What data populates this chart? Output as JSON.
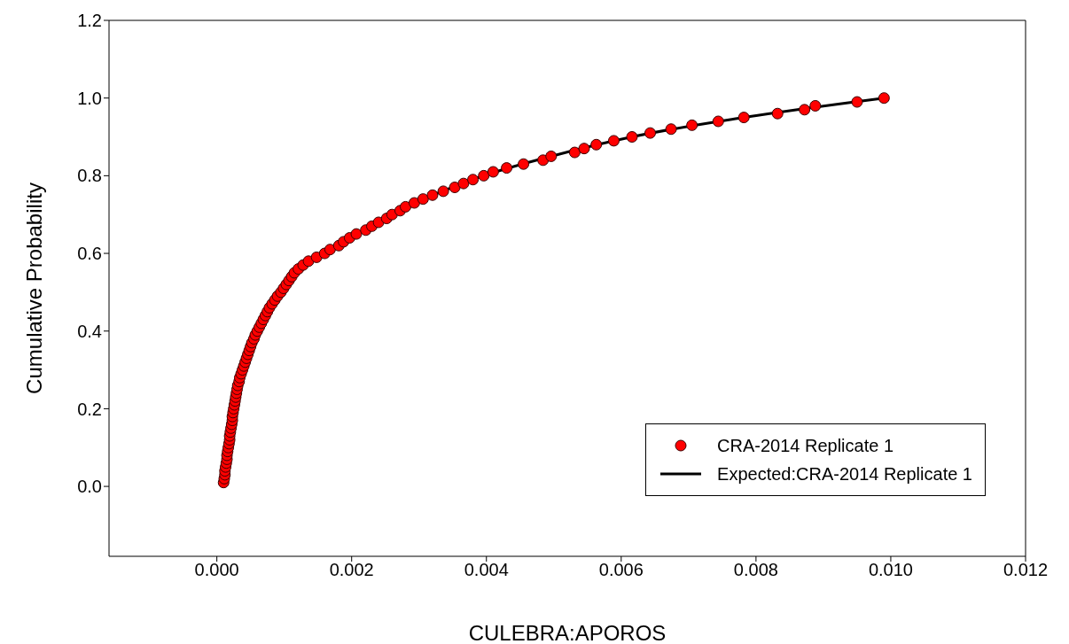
{
  "chart_data": {
    "type": "scatter",
    "xlabel": "CULEBRA:APOROS",
    "ylabel": "Cumulative Probability",
    "xlim": [
      -0.0016,
      0.012
    ],
    "ylim": [
      -0.18,
      1.2
    ],
    "xticks": [
      {
        "value": 0,
        "label": "0.000"
      },
      {
        "value": 0.002,
        "label": "0.002"
      },
      {
        "value": 0.004,
        "label": "0.004"
      },
      {
        "value": 0.006,
        "label": "0.006"
      },
      {
        "value": 0.008,
        "label": "0.008"
      },
      {
        "value": 0.01,
        "label": "0.010"
      },
      {
        "value": 0.012,
        "label": "0.012"
      }
    ],
    "yticks": [
      {
        "value": 0,
        "label": "0.0"
      },
      {
        "value": 0.2,
        "label": "0.2"
      },
      {
        "value": 0.4,
        "label": "0.4"
      },
      {
        "value": 0.6,
        "label": "0.6"
      },
      {
        "value": 0.8,
        "label": "0.8"
      },
      {
        "value": 1,
        "label": "1.0"
      },
      {
        "value": 1.2,
        "label": "1.2"
      }
    ],
    "grid": false,
    "legend": "bottom right",
    "series": [
      {
        "name": "CRA-2014 Replicate 1",
        "marker": "circle",
        "color": "#ff0000",
        "x": [
          0.0001,
          0.00011,
          0.00012,
          0.00012,
          0.00013,
          0.00014,
          0.00015,
          0.00015,
          0.00016,
          0.00017,
          0.00018,
          0.00019,
          0.00019,
          0.0002,
          0.00021,
          0.00022,
          0.00023,
          0.00023,
          0.00024,
          0.00025,
          0.00026,
          0.00027,
          0.00028,
          0.00029,
          0.0003,
          0.00031,
          0.00033,
          0.00034,
          0.00036,
          0.00038,
          0.0004,
          0.00042,
          0.00044,
          0.00046,
          0.00048,
          0.0005,
          0.00052,
          0.00055,
          0.00057,
          0.0006,
          0.00063,
          0.00066,
          0.00069,
          0.00072,
          0.00075,
          0.00078,
          0.00082,
          0.00086,
          0.0009,
          0.00095,
          0.00099,
          0.00103,
          0.00107,
          0.00111,
          0.00115,
          0.00121,
          0.00128,
          0.00136,
          0.00148,
          0.0016,
          0.00168,
          0.00181,
          0.00188,
          0.00197,
          0.00207,
          0.00221,
          0.0023,
          0.0024,
          0.00252,
          0.0026,
          0.00272,
          0.0028,
          0.00293,
          0.00306,
          0.0032,
          0.00336,
          0.00353,
          0.00366,
          0.0038,
          0.00396,
          0.0041,
          0.0043,
          0.00455,
          0.00484,
          0.00496,
          0.00531,
          0.00545,
          0.00563,
          0.00589,
          0.00616,
          0.00643,
          0.00674,
          0.00705,
          0.00744,
          0.00782,
          0.00832,
          0.00872,
          0.00888,
          0.0095,
          0.0099
        ],
        "values": [
          0.01,
          0.02,
          0.03,
          0.04,
          0.05,
          0.06,
          0.07,
          0.08,
          0.09,
          0.1,
          0.11,
          0.12,
          0.13,
          0.14,
          0.15,
          0.16,
          0.17,
          0.18,
          0.19,
          0.2,
          0.21,
          0.22,
          0.23,
          0.24,
          0.25,
          0.26,
          0.27,
          0.28,
          0.29,
          0.3,
          0.31,
          0.32,
          0.33,
          0.34,
          0.35,
          0.36,
          0.37,
          0.38,
          0.39,
          0.4,
          0.41,
          0.42,
          0.43,
          0.44,
          0.45,
          0.46,
          0.47,
          0.48,
          0.49,
          0.5,
          0.51,
          0.52,
          0.53,
          0.54,
          0.55,
          0.56,
          0.57,
          0.58,
          0.59,
          0.6,
          0.61,
          0.62,
          0.63,
          0.64,
          0.65,
          0.66,
          0.67,
          0.68,
          0.69,
          0.7,
          0.71,
          0.72,
          0.73,
          0.74,
          0.75,
          0.76,
          0.77,
          0.78,
          0.79,
          0.8,
          0.81,
          0.82,
          0.83,
          0.84,
          0.85,
          0.86,
          0.87,
          0.88,
          0.89,
          0.9,
          0.91,
          0.92,
          0.93,
          0.94,
          0.95,
          0.96,
          0.97,
          0.98,
          0.99,
          1.0
        ]
      },
      {
        "name": "Expected:CRA-2014 Replicate 1",
        "type": "line",
        "marker": "none",
        "line_style": "solid",
        "color": "#000000",
        "x": [
          0.0032,
          0.00396,
          0.00496,
          0.00616,
          0.00782,
          0.0099
        ],
        "values": [
          0.75,
          0.8,
          0.85,
          0.9,
          0.95,
          1.0
        ]
      }
    ]
  }
}
